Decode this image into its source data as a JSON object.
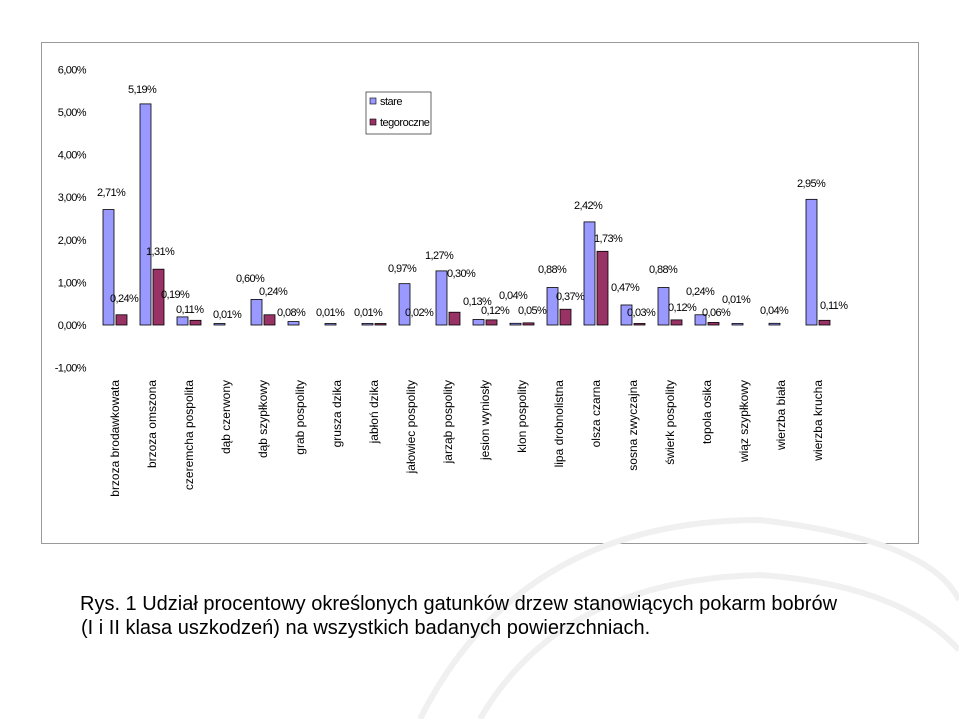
{
  "chart_data": {
    "type": "bar",
    "categories": [
      "brzoza brodawkowata",
      "brzoza omszona",
      "czeremcha pospolita",
      "dąb czerwony",
      "dąb szypułkowy",
      "grab pospolity",
      "grusza dzika",
      "jabłoń dzika",
      "jałowiec pospolity",
      "jarząb pospolity",
      "jesion wyniosły",
      "klon pospolity",
      "lipa drobnolistna",
      "olsza czarna",
      "sosna zwyczajna",
      "świerk pospolity",
      "topola osika",
      "wiąz szypułkowy",
      "wierzba biała",
      "wierzba krucha"
    ],
    "category_display": [
      "brzoza brodawkowata",
      "brzoza omszona",
      "czeremcha pospolita",
      "dąb czerwony",
      "dąb szypłkowy",
      "grab pospolity",
      "grusza dzika",
      "jabłoń dzika",
      "jałowiec pospolity",
      "jarząb pospolity",
      "jesion wyniosły",
      "klon pospolity",
      "lipa drobnolistna",
      "olsza czarna",
      "sosna zwyczajna",
      "świerk pospolity",
      "topola osika",
      "wiąz szypłkowy",
      "wierzba biała",
      "wierzba krucha"
    ],
    "series": [
      {
        "name": "stare",
        "color": "#9999ff",
        "values": [
          2.71,
          5.19,
          0.19,
          0.01,
          0.6,
          0.08,
          0.01,
          0.01,
          0.97,
          1.27,
          0.13,
          0.04,
          0.88,
          2.42,
          0.47,
          0.88,
          0.24,
          0.01,
          0.04,
          2.95
        ],
        "labels": [
          "2,71%",
          "5,19%",
          "0,19%",
          "0,01%",
          "0,60%",
          "0,08%",
          "0,01%",
          "0,01%",
          "0,97%",
          "1,27%",
          "0,13%",
          "0,04%",
          "0,88%",
          "2,42%",
          "0,47%",
          "0,88%",
          "0,24%",
          "0,01%",
          "0,04%",
          "2,95%"
        ]
      },
      {
        "name": "tegoroczne",
        "color": "#993366",
        "values": [
          0.24,
          1.31,
          0.11,
          0.0,
          0.24,
          0.0,
          0.0,
          0.02,
          0.0,
          0.3,
          0.12,
          0.05,
          0.37,
          1.73,
          0.03,
          0.12,
          0.06,
          0.0,
          0.0,
          0.11
        ],
        "labels": [
          "0,24%",
          "1,31%",
          "0,11%",
          "",
          "0,24%",
          "",
          "",
          "0,02%",
          "",
          "0,30%",
          "0,12%",
          "0,05%",
          "0,37%",
          "1,73%",
          "0,03%",
          "0,12%",
          "0,06%",
          "",
          "",
          "0,11%"
        ]
      }
    ],
    "ylim": [
      -1,
      6
    ],
    "yticks": [
      -1,
      0,
      1,
      2,
      3,
      4,
      5,
      6
    ],
    "ytick_labels": [
      "-1,00%",
      "0,00%",
      "1,00%",
      "2,00%",
      "3,00%",
      "4,00%",
      "5,00%",
      "6,00%"
    ],
    "grid": false,
    "legend": "top-center",
    "title": "",
    "xlabel": "",
    "ylabel": ""
  },
  "caption": {
    "line1": "Rys. 1 Udział procentowy określonych gatunków drzew stanowiących pokarm bobrów",
    "line2": "(I i II klasa uszkodzeń) na wszystkich badanych powierzchniach."
  }
}
